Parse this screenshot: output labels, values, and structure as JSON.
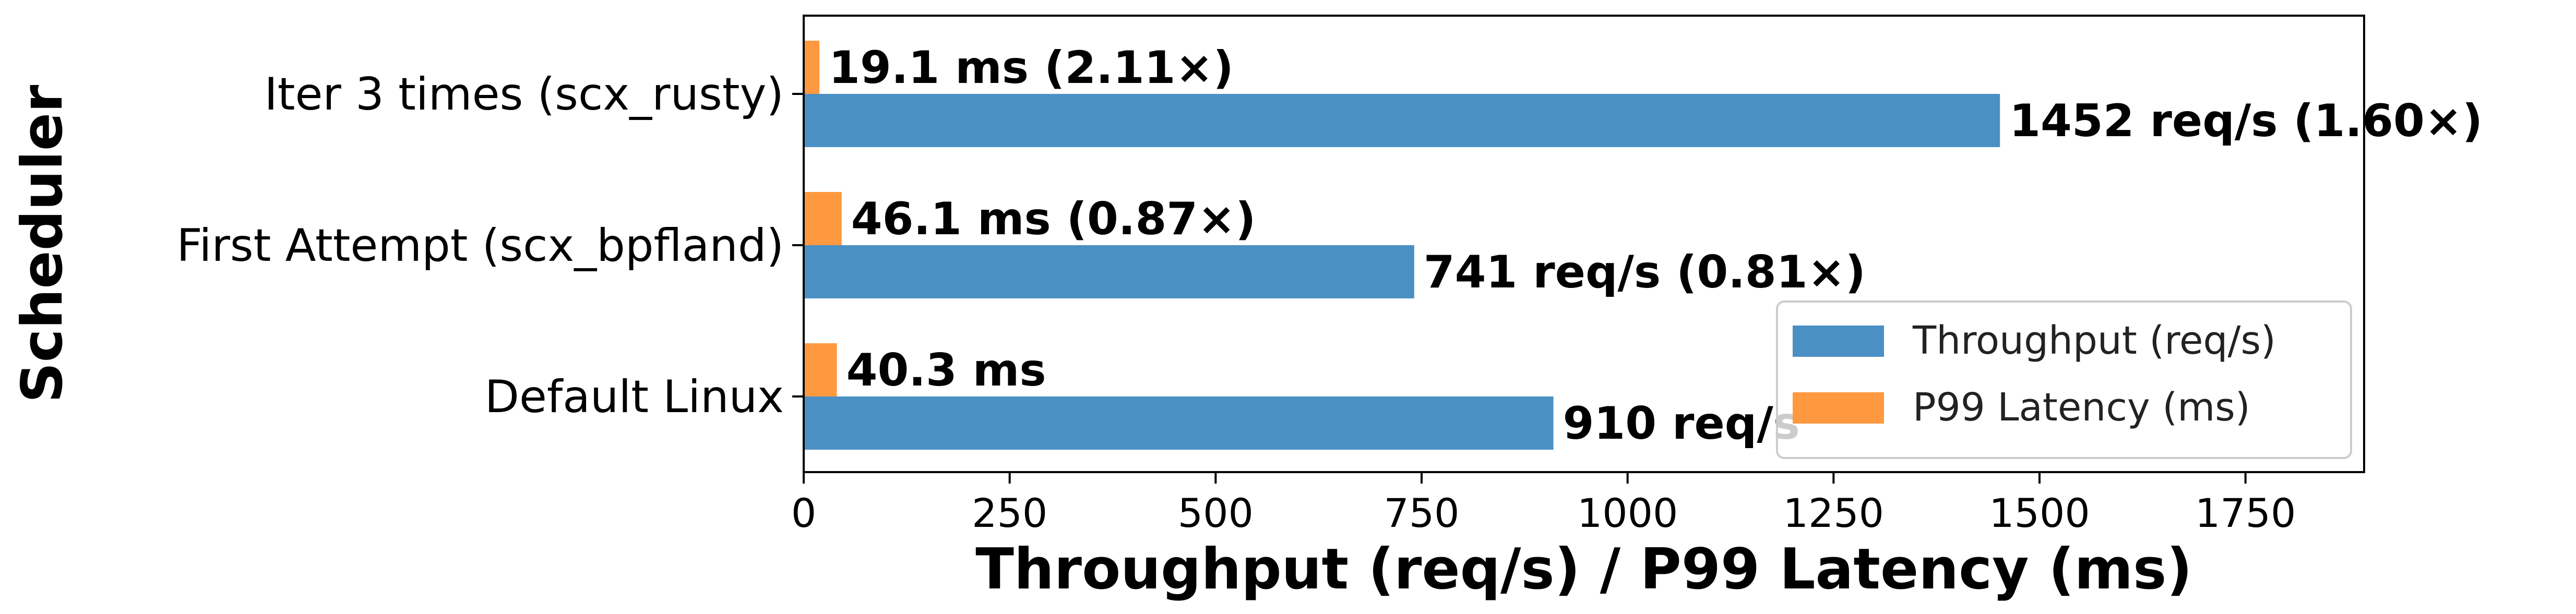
{
  "chart_data": {
    "type": "bar",
    "orientation": "horizontal",
    "categories": [
      "Default Linux",
      "First Attempt (scx_bpfland)",
      "Iter 3 times (scx_rusty)"
    ],
    "series": [
      {
        "name": "Throughput (req/s)",
        "color": "#4a90c4",
        "values": [
          910,
          741,
          1452
        ],
        "labels": [
          "910 req/s",
          "741 req/s (0.81×)",
          "1452 req/s (1.60×)"
        ]
      },
      {
        "name": "P99 Latency (ms)",
        "color": "#ff9940",
        "values": [
          40.3,
          46.1,
          19.1
        ],
        "labels": [
          "40.3 ms",
          "46.1 ms (0.87×)",
          "19.1 ms (2.11×)"
        ]
      }
    ],
    "xlabel": "Throughput (req/s) / P99 Latency (ms)",
    "ylabel": "Scheduler",
    "xlim": [
      0,
      1894
    ],
    "xticks": [
      0,
      250,
      500,
      750,
      1000,
      1250,
      1500,
      1750
    ],
    "xtick_labels": [
      "0",
      "250",
      "500",
      "750",
      "1000",
      "1250",
      "1500",
      "1750"
    ],
    "grid": false,
    "legend": "lower-right"
  }
}
